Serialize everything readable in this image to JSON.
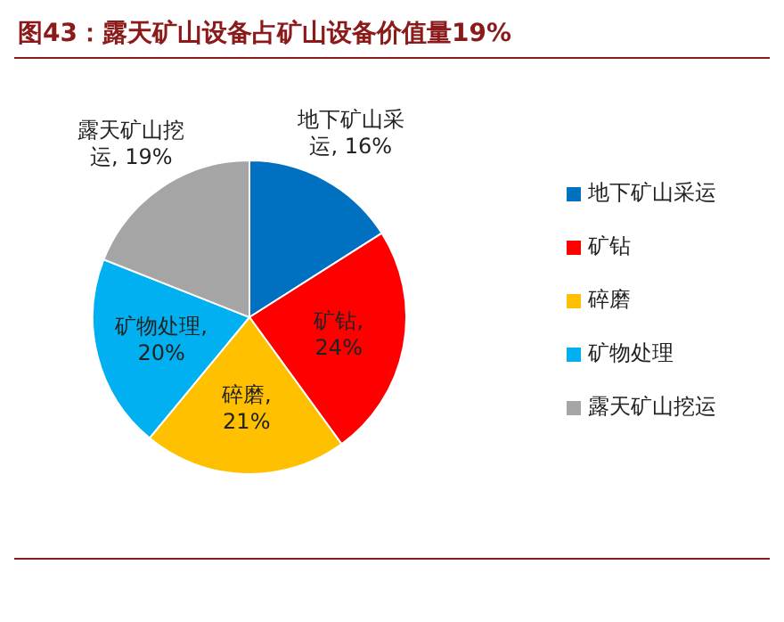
{
  "chart_data": {
    "type": "pie",
    "title": "图43：露天矿山设备占矿山设备价值量19%",
    "categories": [
      "地下矿山采运",
      "矿钻",
      "碎磨",
      "矿物处理",
      "露天矿山挖运"
    ],
    "values": [
      16,
      24,
      21,
      20,
      19
    ],
    "value_labels": [
      "地下矿山采运, 16%",
      "矿钻, 24%",
      "碎磨, 21%",
      "矿物处理, 20%",
      "露天矿山挖运, 19%"
    ],
    "colors": [
      "#0070c0",
      "#ff0000",
      "#ffc000",
      "#00b0f0",
      "#a5a5a5"
    ],
    "legend": "right"
  }
}
